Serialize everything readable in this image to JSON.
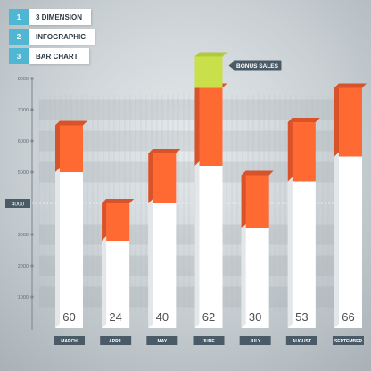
{
  "legend": {
    "items": [
      {
        "num": "1",
        "label": "3 DIMENSION"
      },
      {
        "num": "2",
        "label": "INFOGRAPHIC"
      },
      {
        "num": "3",
        "label": "BAR CHART"
      }
    ]
  },
  "colors": {
    "accent": "#4fb6d3",
    "bar_top": "#ff6a33",
    "bar_top_side": "#d8522a",
    "bonus": "#c9e04a",
    "bar_face": "#ffffff",
    "month_tag": "#4a5a66"
  },
  "callout": {
    "label": "BONUS SALES"
  },
  "reference_line": {
    "value": 4000,
    "label": "4000"
  },
  "chart_data": {
    "type": "bar",
    "title": "",
    "xlabel": "",
    "ylabel": "",
    "ylim": [
      0,
      8000
    ],
    "yticks": [
      1000,
      2000,
      3000,
      5000,
      6000,
      7000,
      8000
    ],
    "grid": false,
    "categories": [
      "MARCH",
      "APRIL",
      "MAY",
      "JUNE",
      "JULY",
      "AUGUST",
      "SEPTEMBER"
    ],
    "data_labels": [
      "60",
      "24",
      "40",
      "62",
      "30",
      "53",
      "66"
    ],
    "series": [
      {
        "values": [
          6500,
          4000,
          5600,
          7700,
          4900,
          6600,
          7700
        ]
      }
    ],
    "base_values": [
      5000,
      2800,
      4000,
      5200,
      3200,
      4700,
      5500
    ],
    "bonus": {
      "category": "JUNE",
      "value": 8700
    }
  }
}
